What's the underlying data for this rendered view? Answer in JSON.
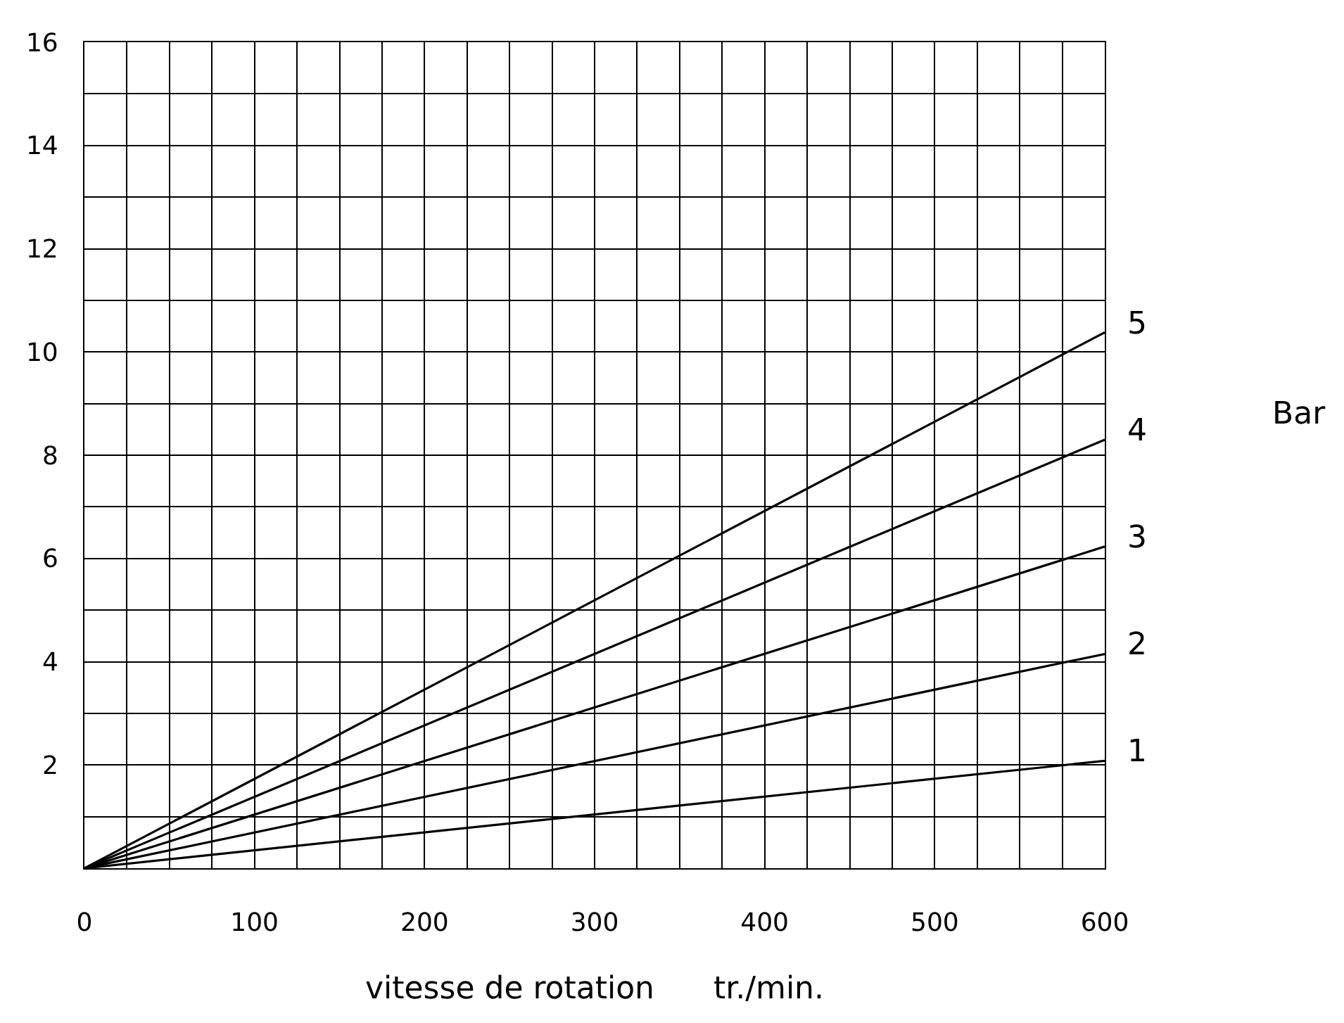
{
  "chart_data": {
    "type": "line",
    "xlabel": "vitesse de rotation      tr./min.",
    "x": [
      0,
      600
    ],
    "xlim": [
      0,
      600
    ],
    "xticks": [
      0,
      100,
      200,
      300,
      400,
      500,
      600
    ],
    "ylim": [
      0,
      16
    ],
    "yticks": [
      {
        "value": 0,
        "label": null
      },
      2,
      4,
      6,
      8,
      10,
      12,
      14,
      16
    ],
    "grid": true,
    "legend": false,
    "marker": "none",
    "line_style": "solid",
    "series": [
      {
        "name": "1",
        "color": "#000000",
        "values": [
          0,
          2.08
        ]
      },
      {
        "name": "2",
        "color": "#000000",
        "values": [
          0,
          4.15
        ]
      },
      {
        "name": "3",
        "color": "#000000",
        "values": [
          0,
          6.23
        ]
      },
      {
        "name": "4",
        "color": "#000000",
        "values": [
          0,
          8.3
        ]
      },
      {
        "name": "5",
        "color": "#000000",
        "values": [
          0,
          10.38
        ]
      }
    ],
    "annotations": [
      "Bar"
    ]
  }
}
